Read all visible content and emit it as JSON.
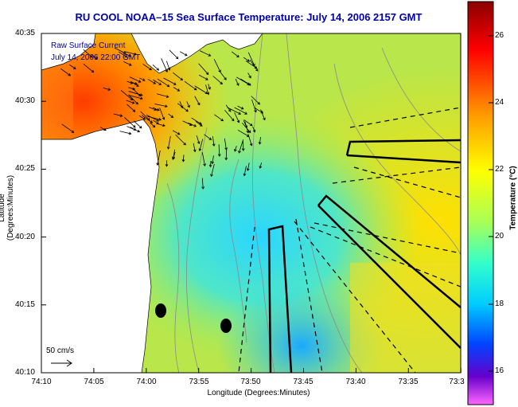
{
  "title": "RU COOL  NOAA–15  Sea Surface Temperature:  July 14, 2006 2157 GMT",
  "axes": {
    "xlabel": "Longitude (Degrees:Minutes)",
    "ylabel": "Latitude (Degrees:Minutes)",
    "xticks": [
      "74:10",
      "74:05",
      "74:00",
      "73:55",
      "73:50",
      "73:45",
      "73:40",
      "73:35",
      "73:3"
    ],
    "yticks": [
      "40:35",
      "40:30",
      "40:25",
      "40:20",
      "40:15",
      "40:10"
    ]
  },
  "colorbar": {
    "label": "Temperature (°C)",
    "range": [
      15,
      27
    ],
    "ticks": [
      "26",
      "24",
      "22",
      "20",
      "18",
      "16"
    ]
  },
  "legend": {
    "title": "Raw Surface Current",
    "date": "July 14, 2006 22:00 GMT",
    "scale_label": "50 cm/s"
  },
  "colors": {
    "title": "#0000aa",
    "land": "#ffffff",
    "boundary": "#000000",
    "contour": "#8a8a8a"
  }
}
